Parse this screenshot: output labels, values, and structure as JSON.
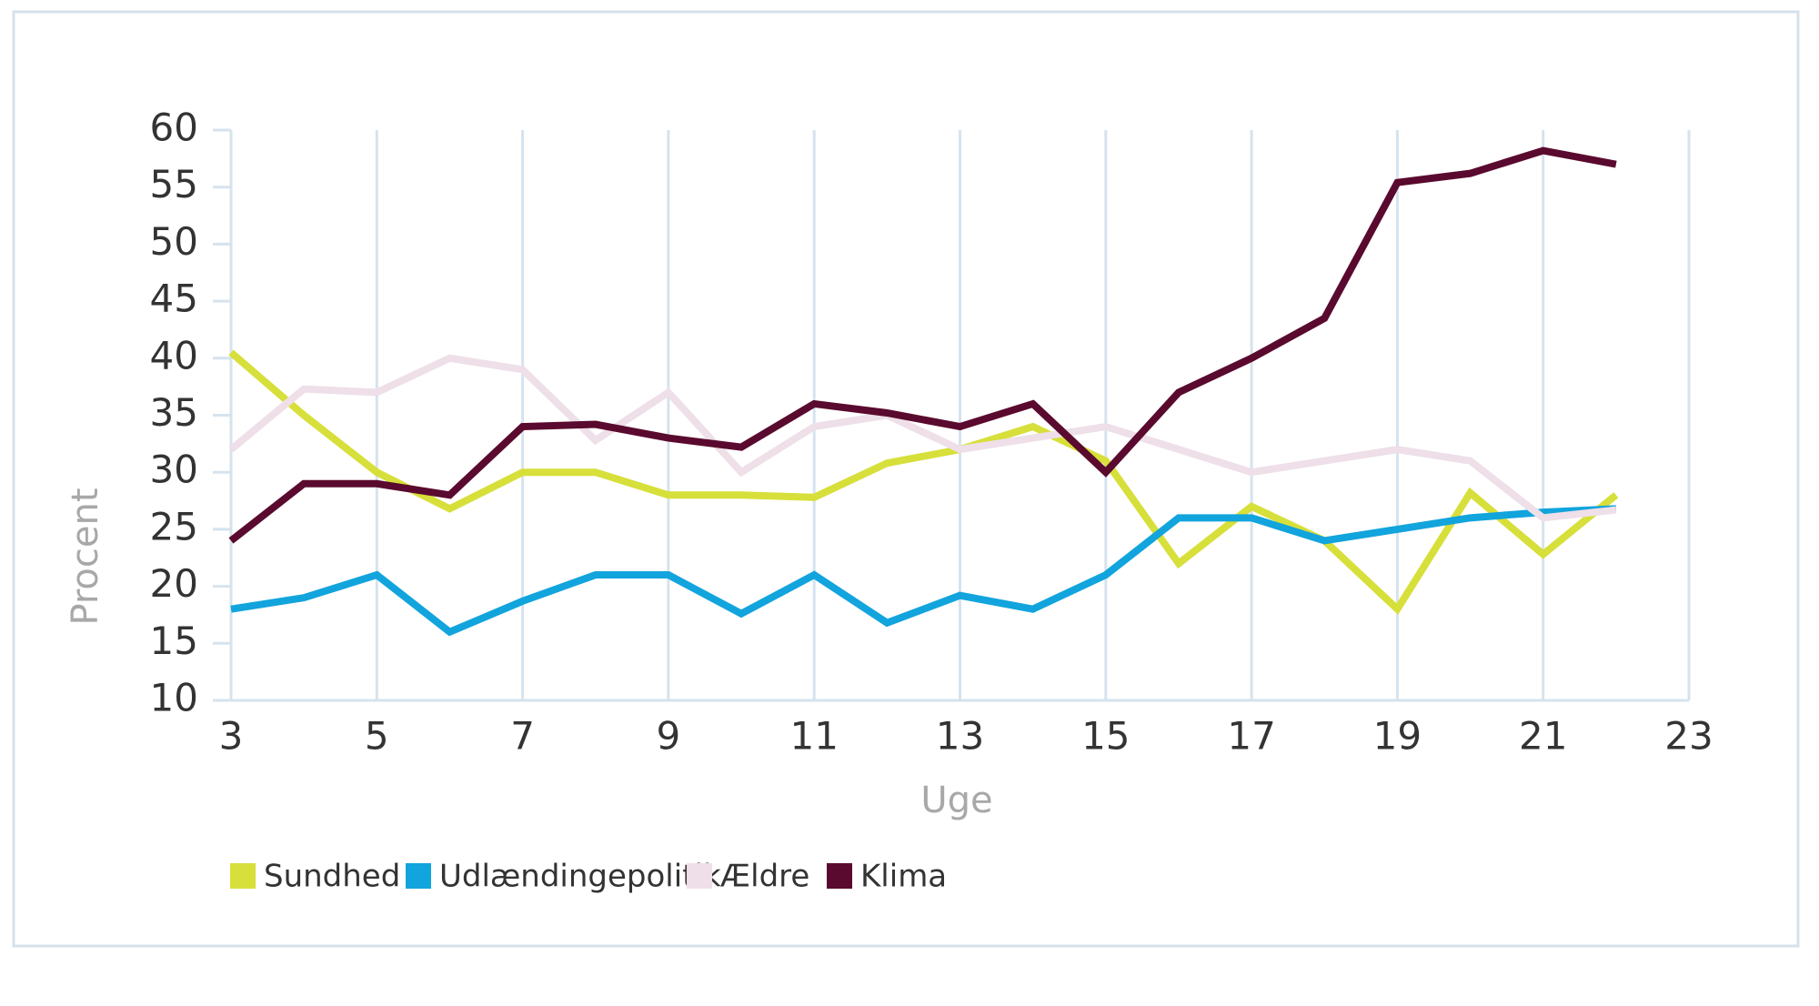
{
  "chart_data": {
    "type": "line",
    "x_label": "Uge",
    "y_label": "Procent",
    "x": [
      3,
      4,
      5,
      6,
      7,
      8,
      9,
      10,
      11,
      12,
      13,
      14,
      15,
      16,
      17,
      18,
      19,
      20,
      21,
      22
    ],
    "series": [
      {
        "name": "Sundhed",
        "color": "#d7df3a",
        "values": [
          40.5,
          35,
          30,
          26.8,
          30,
          30,
          28,
          28,
          27.8,
          30.8,
          32,
          34,
          31,
          22,
          27,
          24,
          18,
          28.2,
          22.8,
          28
        ]
      },
      {
        "name": "Udlændingepolitik",
        "color": "#12a4dd",
        "values": [
          18,
          19,
          21,
          16,
          18.7,
          21,
          21,
          17.6,
          21,
          16.8,
          19.2,
          18,
          21,
          26,
          26,
          24,
          25,
          26,
          26.5,
          26.8
        ]
      },
      {
        "name": "Ældre",
        "color": "#eedfe8",
        "values": [
          32,
          37.3,
          37,
          40,
          39,
          32.8,
          37,
          30,
          34,
          35,
          32,
          33,
          34,
          32,
          30,
          31,
          32,
          31,
          26,
          26.7
        ]
      },
      {
        "name": "Klima",
        "color": "#5a0a2e",
        "values": [
          24,
          29,
          29,
          28,
          34,
          34.2,
          33,
          32.2,
          36,
          35.2,
          34,
          36,
          30,
          37,
          40,
          43.5,
          55.4,
          56.2,
          58.2,
          57
        ]
      }
    ],
    "xlim": [
      3,
      23
    ],
    "xticks": [
      3,
      5,
      7,
      9,
      11,
      13,
      15,
      17,
      19,
      21,
      23
    ],
    "ylim": [
      10,
      60
    ],
    "yticks": [
      10,
      15,
      20,
      25,
      30,
      35,
      40,
      45,
      50,
      55,
      60
    ],
    "grid": true,
    "legend": "bottom"
  }
}
